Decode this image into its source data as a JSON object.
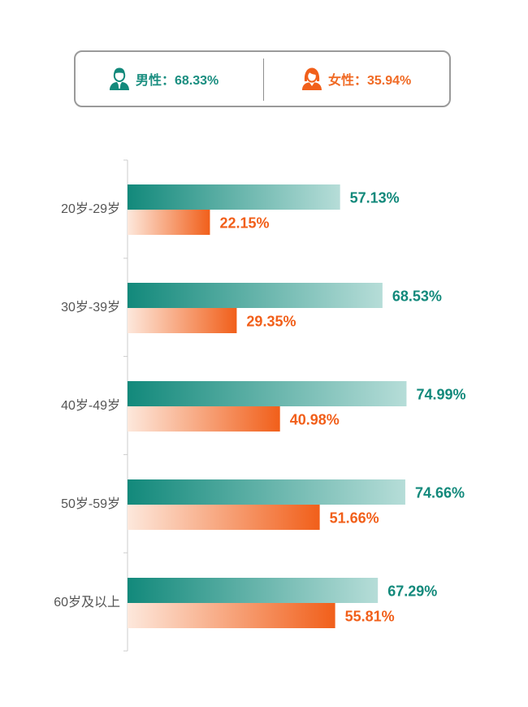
{
  "legend": {
    "male_label": "男性：68.33%",
    "female_label": "女性：35.94%"
  },
  "colors": {
    "male": "#12897b",
    "male_light": "#b6ddd8",
    "female": "#f15f1a",
    "female_light": "#fde8dc",
    "axis": "#cccccc"
  },
  "chart_data": {
    "type": "bar",
    "orientation": "horizontal",
    "categories": [
      "20岁-29岁",
      "30岁-39岁",
      "40岁-49岁",
      "50岁-59岁",
      "60岁及以上"
    ],
    "series": [
      {
        "name": "男性",
        "values": [
          57.13,
          68.53,
          74.99,
          74.66,
          67.29
        ],
        "labels": [
          "57.13%",
          "68.53%",
          "74.99%",
          "74.66%",
          "67.29%"
        ]
      },
      {
        "name": "女性",
        "values": [
          22.15,
          29.35,
          40.98,
          51.66,
          55.81
        ],
        "labels": [
          "22.15%",
          "29.35%",
          "40.98%",
          "51.66%",
          "55.81%"
        ]
      }
    ],
    "xlim": [
      0,
      100
    ],
    "grid": false,
    "legend": "top"
  }
}
